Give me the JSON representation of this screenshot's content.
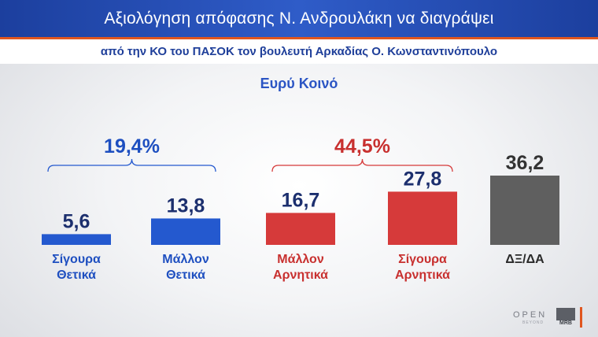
{
  "header": {
    "title": "Αξιολόγηση απόφασης Ν. Ανδρουλάκη να διαγράψει",
    "subtitle": "από την ΚΟ του ΠΑΣΟΚ τον βουλευτή Αρκαδίας Ο. Κωνσταντινόπουλο"
  },
  "audience": "Ευρύ Κοινό",
  "colors": {
    "positive": "#2459cf",
    "negative": "#d63a3a",
    "neutral": "#5f5f5f",
    "positive_text": "#1e4fc0",
    "negative_text": "#c8302f"
  },
  "chart_data": {
    "type": "bar",
    "title": "Αξιολόγηση απόφασης Ν. Ανδρουλάκη να διαγράψει",
    "categories": [
      [
        "Σίγουρα",
        "Θετικά"
      ],
      [
        "Μάλλον",
        "Θετικά"
      ],
      [
        "Μάλλον",
        "Αρνητικά"
      ],
      [
        "Σίγουρα",
        "Αρνητικά"
      ],
      [
        "ΔΞ/ΔΑ"
      ]
    ],
    "values": [
      5.6,
      13.8,
      16.7,
      27.8,
      36.2
    ],
    "value_labels": [
      "5,6",
      "13,8",
      "16,7",
      "27,8",
      "36,2"
    ],
    "bar_colors": [
      "positive",
      "positive",
      "negative",
      "negative",
      "neutral"
    ],
    "groups": [
      {
        "label": "19,4%",
        "members": [
          0,
          1
        ],
        "color": "positive"
      },
      {
        "label": "44,5%",
        "members": [
          2,
          3
        ],
        "color": "negative"
      }
    ]
  },
  "logos": {
    "open": "OPEN",
    "open_tagline": "BEYOND",
    "mrb": "MRB"
  }
}
